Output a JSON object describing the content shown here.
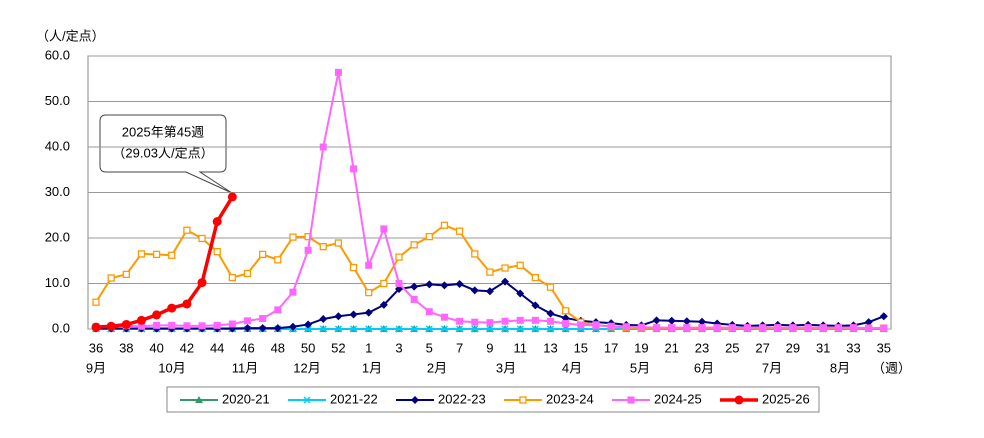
{
  "chart_data": {
    "type": "line",
    "y_unit_label": "（人/定点）",
    "x_unit_label": "（週）",
    "categories": [
      "36",
      null,
      "38",
      null,
      "40",
      null,
      "42",
      null,
      "44",
      null,
      "46",
      null,
      "48",
      null,
      "50",
      null,
      "52",
      null,
      "1",
      null,
      "3",
      null,
      "5",
      null,
      "7",
      null,
      "9",
      null,
      "11",
      null,
      "13",
      null,
      "15",
      null,
      "17",
      null,
      "19",
      null,
      "21",
      null,
      "23",
      null,
      "25",
      null,
      "27",
      null,
      "29",
      null,
      "31",
      null,
      "33",
      null,
      "35"
    ],
    "month_labels": [
      "9月",
      "10月",
      "11月",
      "12月",
      "1月",
      "2月",
      "3月",
      "4月",
      "5月",
      "6月",
      "7月",
      "8月"
    ],
    "ylim": [
      0,
      60
    ],
    "yticks": [
      {
        "value": 0,
        "label": "0.0"
      },
      {
        "value": 10,
        "label": "10.0"
      },
      {
        "value": 20,
        "label": "20.0"
      },
      {
        "value": 30,
        "label": "30.0"
      },
      {
        "value": 40,
        "label": "40.0"
      },
      {
        "value": 50,
        "label": "50.0"
      },
      {
        "value": 60,
        "label": "60.0"
      }
    ],
    "grid": true,
    "legend": "bottom",
    "annotation": {
      "lines": [
        "2025年第45週",
        "（29.03人/定点）"
      ]
    },
    "series": [
      {
        "name": "2020-21",
        "color": "#339966",
        "marker": "triangle",
        "values": [
          0,
          0,
          0,
          0,
          0,
          0,
          0,
          0,
          0,
          0,
          0,
          0,
          0,
          0,
          0,
          0,
          0,
          0,
          0,
          0,
          0,
          0,
          0,
          0,
          0,
          0,
          0,
          0,
          0,
          0,
          0,
          0,
          0,
          0,
          0,
          0,
          0,
          0,
          0,
          0,
          0,
          0,
          0,
          0,
          0,
          0,
          0,
          0,
          0,
          0,
          0,
          0,
          0
        ]
      },
      {
        "name": "2021-22",
        "color": "#00ccff",
        "marker": "x",
        "values": [
          0,
          0,
          0,
          0,
          0,
          0,
          0,
          0,
          0,
          0,
          0,
          0,
          0,
          0,
          0,
          0,
          0,
          0,
          0,
          0,
          0,
          0,
          0,
          0,
          0,
          0,
          0,
          0,
          0,
          0,
          0,
          0,
          0,
          0,
          0,
          0,
          0,
          0,
          0,
          0,
          0,
          0,
          0,
          0,
          0,
          0,
          0,
          0,
          0,
          0,
          0,
          0,
          0
        ]
      },
      {
        "name": "2022-23",
        "color": "#000080",
        "marker": "diamond",
        "values": [
          0.1,
          0.1,
          0.1,
          0.1,
          0.1,
          0.1,
          0.1,
          0.1,
          0.1,
          0.1,
          0.2,
          0.2,
          0.2,
          0.5,
          1.0,
          2.2,
          2.8,
          3.2,
          3.6,
          5.3,
          8.8,
          9.3,
          9.8,
          9.6,
          9.9,
          8.5,
          8.3,
          10.4,
          7.8,
          5.2,
          3.4,
          2.4,
          1.8,
          1.5,
          1.3,
          0.9,
          0.8,
          1.9,
          1.8,
          1.7,
          1.6,
          1.2,
          0.9,
          0.7,
          0.8,
          0.9,
          0.8,
          0.9,
          0.8,
          0.7,
          0.8,
          1.5,
          2.8
        ]
      },
      {
        "name": "2023-24",
        "color": "#ff9900",
        "marker": "square-open",
        "values": [
          5.9,
          11.2,
          12.0,
          16.5,
          16.4,
          16.2,
          21.7,
          19.9,
          17.0,
          11.3,
          12.2,
          16.4,
          15.2,
          20.2,
          20.3,
          18.1,
          18.9,
          13.5,
          8.0,
          10.0,
          15.8,
          18.5,
          20.3,
          22.8,
          21.5,
          16.5,
          12.5,
          13.4,
          14.0,
          11.3,
          9.2,
          4.0,
          1.5,
          0.9,
          0.5,
          0.3,
          0.2,
          0.2,
          0.2,
          0.2,
          0.2,
          0.2,
          0.2,
          0.2,
          0.2,
          0.2,
          0.2,
          0.2,
          0.2,
          0.2,
          0.2,
          0.2,
          0.2
        ]
      },
      {
        "name": "2024-25",
        "color": "#ff66ff",
        "marker": "square",
        "values": [
          0.5,
          0.6,
          0.7,
          0.6,
          0.8,
          0.8,
          0.7,
          0.7,
          0.8,
          1.1,
          1.8,
          2.3,
          4.2,
          8.1,
          17.3,
          40.0,
          56.4,
          35.2,
          14.0,
          22.0,
          10.0,
          6.5,
          3.8,
          2.6,
          1.7,
          1.5,
          1.4,
          1.7,
          1.9,
          1.9,
          1.7,
          1.2,
          0.9,
          0.8,
          0.6,
          0.5,
          0.4,
          0.3,
          0.3,
          0.3,
          0.3,
          0.3,
          0.3,
          0.3,
          0.3,
          0.3,
          0.3,
          0.3,
          0.3,
          0.3,
          0.3,
          0.2,
          0.2
        ]
      },
      {
        "name": "2025-26",
        "color": "#ff0000",
        "marker": "circle",
        "values": [
          0.4,
          0.6,
          1.0,
          1.9,
          3.1,
          4.6,
          5.5,
          10.2,
          23.6,
          29.03,
          null,
          null,
          null,
          null,
          null,
          null,
          null,
          null,
          null,
          null,
          null,
          null,
          null,
          null,
          null,
          null,
          null,
          null,
          null,
          null,
          null,
          null,
          null,
          null,
          null,
          null,
          null,
          null,
          null,
          null,
          null,
          null,
          null,
          null,
          null,
          null,
          null,
          null,
          null,
          null,
          null,
          null,
          null
        ]
      }
    ]
  }
}
